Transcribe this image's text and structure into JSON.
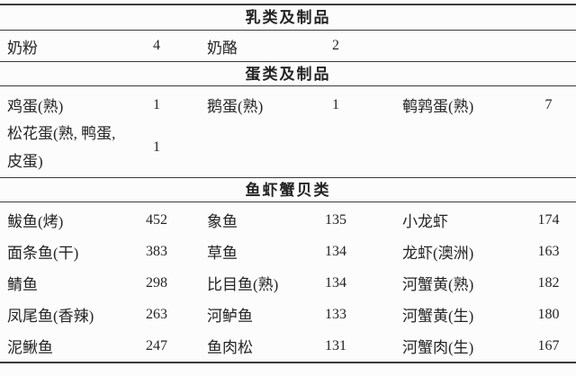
{
  "colors": {
    "text": "#242424",
    "rule": "#3b3b3b",
    "background": "#fcfcfc"
  },
  "table": {
    "sections": [
      {
        "header": "乳类及制品",
        "columns": [
          {
            "entries": [
              {
                "name": "奶粉",
                "value": "4"
              }
            ]
          },
          {
            "entries": [
              {
                "name": "奶酪",
                "value": "2"
              }
            ]
          },
          {
            "entries": []
          }
        ]
      },
      {
        "header": "蛋类及制品",
        "columns": [
          {
            "entries": [
              {
                "name": "鸡蛋(熟)",
                "value": "1"
              },
              {
                "name": "松花蛋(熟, 鸭蛋, 皮蛋)",
                "value": "1"
              }
            ]
          },
          {
            "entries": [
              {
                "name": "鹅蛋(熟)",
                "value": "1"
              }
            ]
          },
          {
            "entries": [
              {
                "name": "鹌鹑蛋(熟)",
                "value": "7"
              }
            ]
          }
        ]
      },
      {
        "header": "鱼虾蟹贝类",
        "columns": [
          {
            "entries": [
              {
                "name": "鲅鱼(烤)",
                "value": "452"
              },
              {
                "name": "面条鱼(干)",
                "value": "383"
              },
              {
                "name": "鲭鱼",
                "value": "298"
              },
              {
                "name": "凤尾鱼(香辣)",
                "value": "263"
              },
              {
                "name": "泥鳅鱼",
                "value": "247"
              }
            ]
          },
          {
            "entries": [
              {
                "name": "象鱼",
                "value": "135"
              },
              {
                "name": "草鱼",
                "value": "134"
              },
              {
                "name": "比目鱼(熟)",
                "value": "134"
              },
              {
                "name": "河鲈鱼",
                "value": "133"
              },
              {
                "name": "鱼肉松",
                "value": "131"
              }
            ]
          },
          {
            "entries": [
              {
                "name": "小龙虾",
                "value": "174"
              },
              {
                "name": "龙虾(澳洲)",
                "value": "163"
              },
              {
                "name": "河蟹黄(熟)",
                "value": "182"
              },
              {
                "name": "河蟹黄(生)",
                "value": "180"
              },
              {
                "name": "河蟹肉(生)",
                "value": "167"
              }
            ]
          }
        ]
      }
    ]
  }
}
